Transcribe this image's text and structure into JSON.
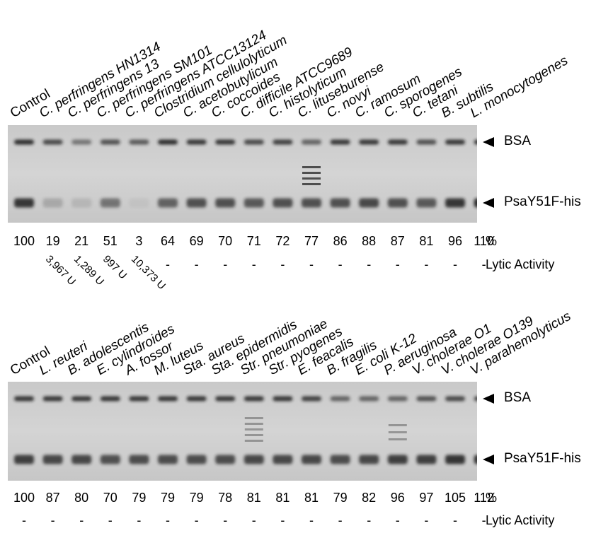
{
  "band_labels": {
    "bsa": "BSA",
    "psa": "PsaY51F-his"
  },
  "percent_unit": "%",
  "lytic_activity_label": "Lytic Activity",
  "panels": [
    {
      "lanes": [
        {
          "label": "Control",
          "italic": false,
          "percent": "100",
          "lytic": ""
        },
        {
          "label": "C. perfringens HN1314",
          "italic": true,
          "percent": "19",
          "lytic": "3,967 U"
        },
        {
          "label": "C. perfringens 13",
          "italic": true,
          "percent": "21",
          "lytic": "1,289 U"
        },
        {
          "label": "C. perfringens SM101",
          "italic": true,
          "percent": "51",
          "lytic": "997 U"
        },
        {
          "label": "C. perfringens ATCC13124",
          "italic": true,
          "percent": "3",
          "lytic": "10,373 U"
        },
        {
          "label": "Clostridium cellulolyticum",
          "italic": true,
          "percent": "64",
          "lytic": "-"
        },
        {
          "label": "C. acetobutylicum",
          "italic": true,
          "percent": "69",
          "lytic": "-"
        },
        {
          "label": "C. coccoides",
          "italic": true,
          "percent": "70",
          "lytic": "-"
        },
        {
          "label": "C. difficile ATCC9689",
          "italic": true,
          "percent": "71",
          "lytic": "-"
        },
        {
          "label": "C. histolyticum",
          "italic": true,
          "percent": "72",
          "lytic": "-"
        },
        {
          "label": "C. lituseburense",
          "italic": true,
          "percent": "77",
          "lytic": "-"
        },
        {
          "label": "C. novyi",
          "italic": true,
          "percent": "86",
          "lytic": "-"
        },
        {
          "label": "C. ramosum",
          "italic": true,
          "percent": "88",
          "lytic": "-"
        },
        {
          "label": "C. sporogenes",
          "italic": true,
          "percent": "87",
          "lytic": "-"
        },
        {
          "label": "C. tetani",
          "italic": true,
          "percent": "81",
          "lytic": "-"
        },
        {
          "label": "B. subtilis",
          "italic": true,
          "percent": "96",
          "lytic": "-"
        },
        {
          "label": "L. monocytogenes",
          "italic": true,
          "percent": "110",
          "lytic": "-"
        }
      ]
    },
    {
      "lanes": [
        {
          "label": "Control",
          "italic": false,
          "percent": "100",
          "lytic": "-"
        },
        {
          "label": "L. reuteri",
          "italic": true,
          "percent": "87",
          "lytic": "-"
        },
        {
          "label": "B. adolescentis",
          "italic": true,
          "percent": "80",
          "lytic": "-"
        },
        {
          "label": "E. cylindroides",
          "italic": true,
          "percent": "70",
          "lytic": "-"
        },
        {
          "label": "A. fossor",
          "italic": true,
          "percent": "79",
          "lytic": "-"
        },
        {
          "label": "M. luteus",
          "italic": true,
          "percent": "79",
          "lytic": "-"
        },
        {
          "label": "Sta. aureus",
          "italic": true,
          "percent": "79",
          "lytic": "-"
        },
        {
          "label": "Sta. epidermidis",
          "italic": true,
          "percent": "78",
          "lytic": "-"
        },
        {
          "label": "Str. pneumoniae",
          "italic": true,
          "percent": "81",
          "lytic": "-"
        },
        {
          "label": "Str. pyogenes",
          "italic": true,
          "percent": "81",
          "lytic": "-"
        },
        {
          "label": "E. feacalis",
          "italic": true,
          "percent": "81",
          "lytic": "-"
        },
        {
          "label": "B. fragilis",
          "italic": true,
          "percent": "79",
          "lytic": "-"
        },
        {
          "label": "E. coli K-12",
          "italic": true,
          "percent": "82",
          "lytic": "-"
        },
        {
          "label": "P. aeruginosa",
          "italic": true,
          "percent": "96",
          "lytic": "-"
        },
        {
          "label": "V. cholerae O1",
          "italic": true,
          "percent": "97",
          "lytic": "-"
        },
        {
          "label": "V. cholerae O139",
          "italic": true,
          "percent": "105",
          "lytic": "-"
        },
        {
          "label": "V. parahemolyticus",
          "italic": true,
          "percent": "112",
          "lytic": "-"
        }
      ]
    }
  ]
}
